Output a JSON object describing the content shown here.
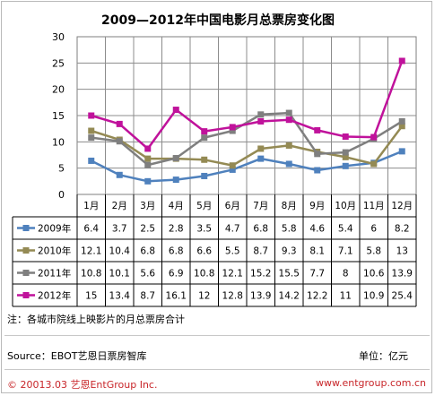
{
  "chart_data": {
    "type": "line",
    "title": "2009—2012年中国电影月总票房变化图",
    "categories": [
      "1月",
      "2月",
      "3月",
      "4月",
      "5月",
      "6月",
      "7月",
      "8月",
      "9月",
      "10月",
      "11月",
      "12月"
    ],
    "ylim": [
      0,
      30
    ],
    "yticks": [
      0,
      5,
      10,
      15,
      20,
      25,
      30
    ],
    "grid": true,
    "legend": "table-below",
    "series": [
      {
        "name": "2009年",
        "color": "#4f81bd",
        "values": [
          6.4,
          3.7,
          2.5,
          2.8,
          3.5,
          4.7,
          6.8,
          5.8,
          4.6,
          5.4,
          6,
          8.2
        ]
      },
      {
        "name": "2010年",
        "color": "#948a54",
        "values": [
          12.1,
          10.4,
          6.8,
          6.8,
          6.6,
          5.5,
          8.7,
          9.3,
          8.1,
          7.1,
          5.8,
          13
        ]
      },
      {
        "name": "2011年",
        "color": "#7f7f7f",
        "values": [
          10.8,
          10.1,
          5.6,
          6.9,
          10.8,
          12.1,
          15.2,
          15.5,
          7.7,
          8,
          10.6,
          13.9
        ]
      },
      {
        "name": "2012年",
        "color": "#c0129b",
        "values": [
          15,
          13.4,
          8.7,
          16.1,
          12,
          12.8,
          13.9,
          14.2,
          12.2,
          11,
          10.9,
          25.4
        ]
      }
    ]
  },
  "note": "注：各城市院线上映影片的月总票房合计",
  "source": "Source：EBOT艺恩日票房智库",
  "unit": "单位：亿元",
  "copyright": "© 20013.03  艺恩EntGroup Inc.",
  "website": "www.entgroup.com.cn"
}
